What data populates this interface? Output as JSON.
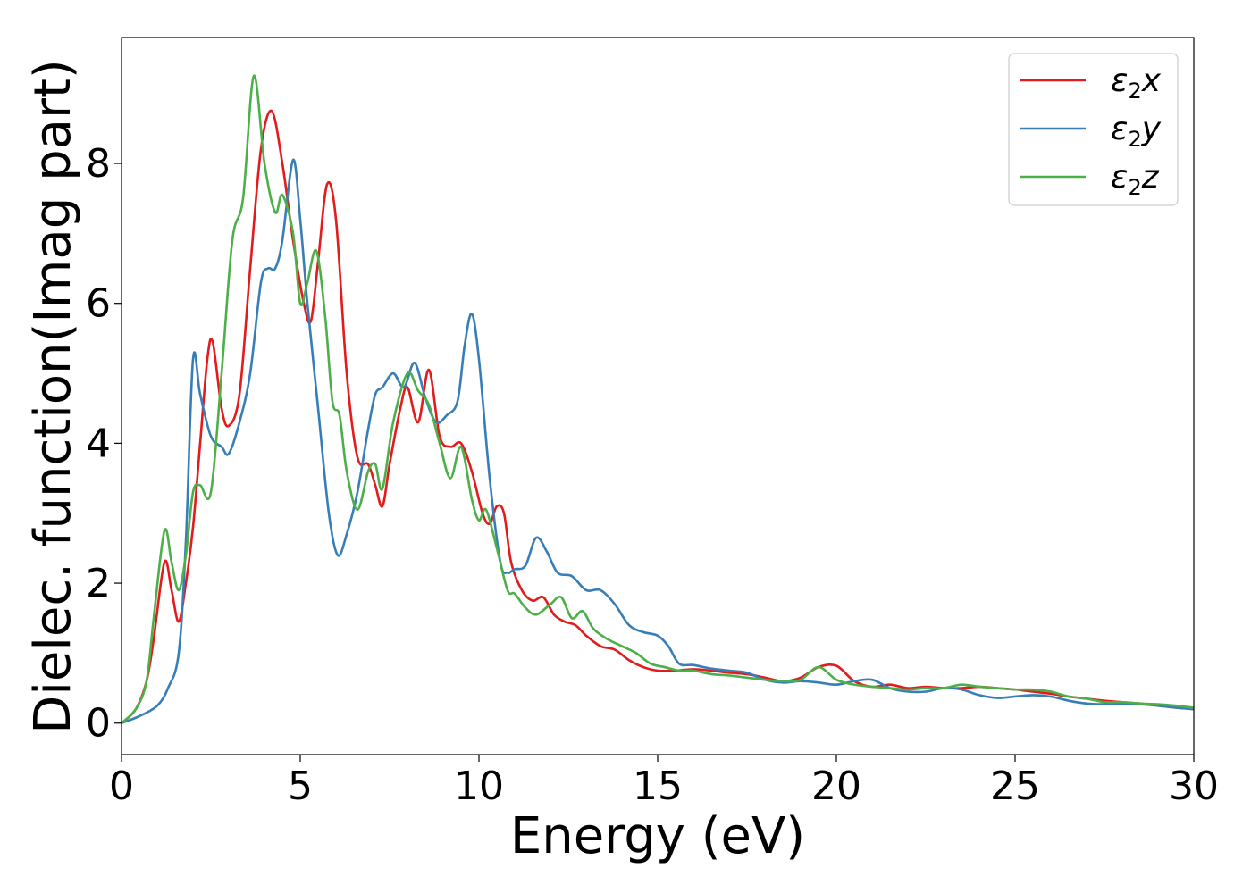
{
  "chart_data": {
    "type": "line",
    "xlabel": "Energy (eV)",
    "ylabel": "Dielec. function(Imag part)",
    "xlim": [
      0,
      30
    ],
    "ylim": [
      -0.45,
      9.8
    ],
    "xticks": [
      0,
      5,
      10,
      15,
      20,
      25,
      30
    ],
    "yticks": [
      0,
      2,
      4,
      6,
      8
    ],
    "grid": false,
    "legend": {
      "position": "top-right",
      "entries": [
        {
          "main": "ε",
          "sub": "2",
          "var": "x"
        },
        {
          "main": "ε",
          "sub": "2",
          "var": "y"
        },
        {
          "main": "ε",
          "sub": "2",
          "var": "z"
        }
      ]
    },
    "series": [
      {
        "name": "ε2x",
        "color": "#e41a1c",
        "x": [
          0,
          0.4,
          0.7,
          0.9,
          1.2,
          1.4,
          1.6,
          1.8,
          2.0,
          2.2,
          2.4,
          2.55,
          2.8,
          3.0,
          3.3,
          3.6,
          3.9,
          4.2,
          4.5,
          4.8,
          5.1,
          5.3,
          5.5,
          5.75,
          6.0,
          6.3,
          6.6,
          6.9,
          7.1,
          7.3,
          7.5,
          7.8,
          8.0,
          8.3,
          8.6,
          8.9,
          9.2,
          9.5,
          9.8,
          10.1,
          10.3,
          10.5,
          10.7,
          10.9,
          11.2,
          11.5,
          11.8,
          12.1,
          12.4,
          12.7,
          13.0,
          13.4,
          13.8,
          14.2,
          14.6,
          15.0,
          15.5,
          16.0,
          16.5,
          17.0,
          17.5,
          18.0,
          18.5,
          19.0,
          19.5,
          20.0,
          20.5,
          21.0,
          21.5,
          22.0,
          22.5,
          23.0,
          23.5,
          24.0,
          24.5,
          25.0,
          25.5,
          26.0,
          26.5,
          27.0,
          27.5,
          28.0,
          28.5,
          29.0,
          29.5,
          30.0
        ],
        "y": [
          0,
          0.2,
          0.6,
          1.2,
          2.3,
          1.9,
          1.45,
          2.0,
          2.8,
          4.0,
          5.2,
          5.45,
          4.5,
          4.25,
          4.7,
          6.5,
          8.2,
          8.75,
          8.0,
          6.9,
          6.0,
          5.75,
          6.6,
          7.7,
          7.2,
          5.0,
          3.8,
          3.7,
          3.4,
          3.1,
          3.7,
          4.5,
          4.8,
          4.3,
          5.05,
          4.1,
          3.95,
          4.0,
          3.6,
          3.0,
          2.85,
          3.1,
          3.0,
          2.3,
          1.9,
          1.75,
          1.8,
          1.55,
          1.45,
          1.4,
          1.25,
          1.1,
          1.05,
          0.9,
          0.8,
          0.75,
          0.75,
          0.77,
          0.75,
          0.72,
          0.7,
          0.65,
          0.6,
          0.65,
          0.8,
          0.82,
          0.6,
          0.52,
          0.55,
          0.5,
          0.52,
          0.5,
          0.5,
          0.52,
          0.5,
          0.48,
          0.45,
          0.42,
          0.38,
          0.35,
          0.32,
          0.3,
          0.28,
          0.25,
          0.22,
          0.2
        ]
      },
      {
        "name": "ε2y",
        "color": "#377eb8",
        "x": [
          0,
          0.5,
          1.0,
          1.3,
          1.6,
          1.8,
          2.0,
          2.2,
          2.5,
          2.8,
          3.0,
          3.3,
          3.6,
          3.9,
          4.1,
          4.3,
          4.5,
          4.8,
          5.0,
          5.2,
          5.5,
          5.8,
          6.05,
          6.3,
          6.6,
          6.9,
          7.1,
          7.3,
          7.6,
          7.9,
          8.2,
          8.5,
          8.8,
          9.1,
          9.4,
          9.6,
          9.8,
          10.0,
          10.3,
          10.6,
          10.8,
          11.0,
          11.3,
          11.6,
          11.9,
          12.2,
          12.6,
          13.0,
          13.4,
          13.8,
          14.2,
          14.6,
          15.0,
          15.3,
          15.6,
          16.0,
          16.5,
          17.0,
          17.5,
          18.0,
          18.5,
          19.0,
          19.5,
          20.0,
          20.5,
          21.0,
          21.5,
          22.0,
          22.5,
          23.0,
          23.5,
          24.0,
          24.5,
          25.0,
          25.5,
          26.0,
          26.5,
          27.0,
          27.5,
          28.0,
          28.5,
          29.0,
          29.5,
          30.0
        ],
        "y": [
          0,
          0.1,
          0.25,
          0.5,
          1.0,
          2.6,
          5.2,
          4.7,
          4.1,
          3.95,
          3.85,
          4.3,
          5.0,
          6.3,
          6.5,
          6.5,
          6.9,
          8.05,
          7.2,
          6.0,
          4.5,
          3.0,
          2.4,
          2.7,
          3.3,
          4.2,
          4.7,
          4.8,
          5.0,
          4.8,
          5.15,
          4.65,
          4.3,
          4.4,
          4.6,
          5.4,
          5.85,
          5.2,
          3.5,
          2.3,
          2.15,
          2.2,
          2.25,
          2.65,
          2.45,
          2.15,
          2.1,
          1.9,
          1.9,
          1.7,
          1.4,
          1.3,
          1.25,
          1.1,
          0.85,
          0.83,
          0.78,
          0.75,
          0.72,
          0.62,
          0.58,
          0.6,
          0.58,
          0.55,
          0.6,
          0.62,
          0.5,
          0.45,
          0.45,
          0.5,
          0.48,
          0.4,
          0.36,
          0.38,
          0.4,
          0.38,
          0.32,
          0.28,
          0.27,
          0.28,
          0.27,
          0.25,
          0.22,
          0.2
        ]
      },
      {
        "name": "ε2z",
        "color": "#4daf4a",
        "x": [
          0,
          0.4,
          0.7,
          0.9,
          1.2,
          1.4,
          1.6,
          1.8,
          2.0,
          2.2,
          2.5,
          2.8,
          3.1,
          3.4,
          3.7,
          4.0,
          4.3,
          4.5,
          4.8,
          5.0,
          5.2,
          5.45,
          5.7,
          5.9,
          6.1,
          6.3,
          6.6,
          6.9,
          7.1,
          7.3,
          7.6,
          8.0,
          8.3,
          8.6,
          8.9,
          9.2,
          9.5,
          9.8,
          10.0,
          10.2,
          10.5,
          10.8,
          11.0,
          11.3,
          11.6,
          12.0,
          12.3,
          12.6,
          12.9,
          13.2,
          13.6,
          14.0,
          14.4,
          14.8,
          15.2,
          15.6,
          16.0,
          16.5,
          17.0,
          17.5,
          18.0,
          18.5,
          19.0,
          19.5,
          20.0,
          20.5,
          21.0,
          21.5,
          22.0,
          22.5,
          23.0,
          23.5,
          24.0,
          24.5,
          25.0,
          25.5,
          26.0,
          26.5,
          27.0,
          27.5,
          28.0,
          28.5,
          29.0,
          29.5,
          30.0
        ],
        "y": [
          0,
          0.2,
          0.6,
          1.5,
          2.75,
          2.3,
          1.9,
          2.4,
          3.3,
          3.4,
          3.3,
          5.0,
          6.9,
          7.5,
          9.25,
          8.0,
          7.3,
          7.55,
          7.0,
          6.0,
          6.3,
          6.75,
          5.8,
          4.6,
          4.4,
          3.6,
          3.05,
          3.6,
          3.7,
          3.35,
          4.3,
          5.0,
          4.75,
          4.55,
          4.0,
          3.5,
          3.95,
          3.2,
          2.9,
          3.05,
          2.5,
          1.9,
          1.85,
          1.65,
          1.55,
          1.7,
          1.8,
          1.5,
          1.6,
          1.35,
          1.2,
          1.1,
          1.0,
          0.85,
          0.8,
          0.75,
          0.75,
          0.7,
          0.68,
          0.65,
          0.62,
          0.6,
          0.62,
          0.8,
          0.62,
          0.55,
          0.52,
          0.5,
          0.48,
          0.5,
          0.5,
          0.55,
          0.52,
          0.5,
          0.48,
          0.48,
          0.45,
          0.38,
          0.35,
          0.3,
          0.3,
          0.28,
          0.27,
          0.25,
          0.22
        ]
      }
    ]
  }
}
